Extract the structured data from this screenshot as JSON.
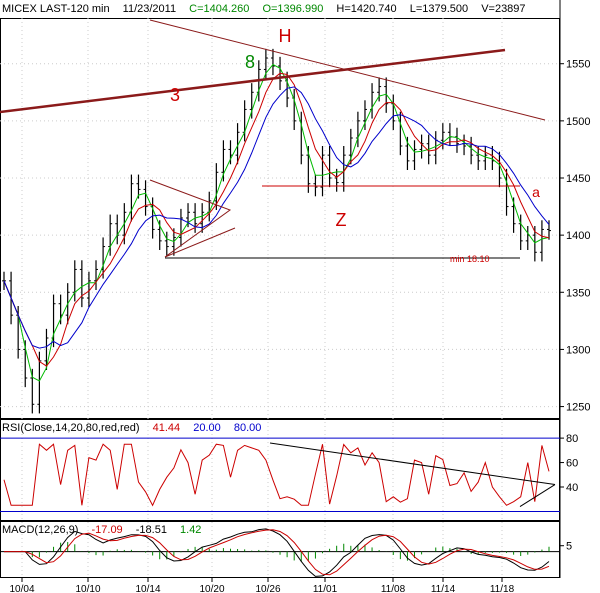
{
  "header": {
    "symbol": "MICEX LAST-120 min",
    "date": "11/23/2011",
    "close": "C=1404.260",
    "open": "O=1396.990",
    "high": "H=1420.740",
    "low": "L=1379.500",
    "volume": "V=23897"
  },
  "rsi_header": {
    "label": "RSI(Close,14,20,80,red,red)",
    "value": "41.44",
    "low": "20.00",
    "high": "80.00"
  },
  "macd_header": {
    "label": "MACD(12,26,9)",
    "v1": "-17.09",
    "v2": "-18.51",
    "v3": "1.42"
  },
  "annotations": {
    "h": "H",
    "eight": "8",
    "three": "3",
    "z": "Z",
    "a": "a",
    "min_label": "min 18.10"
  },
  "colors": {
    "price": "#000000",
    "sma_fast": "#00bb00",
    "sma_mid": "#cc0000",
    "sma_slow": "#0000cc",
    "rsi": "#cc0000",
    "macd": "#000000",
    "signal": "#cc0000",
    "trendline": "#8b1a1a",
    "green_text": "#008800",
    "blue_text": "#0000cc"
  },
  "chart_data": [
    {
      "type": "line",
      "title": "MICEX LAST-120 min",
      "x_ticks": [
        "10/04",
        "10/10",
        "10/14",
        "10/20",
        "10/26",
        "11/01",
        "11/08",
        "11/14",
        "11/18"
      ],
      "y_ticks": [
        1250,
        1300,
        1350,
        1400,
        1450,
        1500,
        1550
      ],
      "ylim": [
        1240,
        1590
      ],
      "series": [
        {
          "values": [
            1360,
            1330,
            1300,
            1275,
            1252,
            1290,
            1310,
            1340,
            1330,
            1350,
            1370,
            1345,
            1360,
            1370,
            1390,
            1410,
            1400,
            1420,
            1445,
            1440,
            1425,
            1405,
            1395,
            1390,
            1398,
            1415,
            1420,
            1410,
            1420,
            1430,
            1455,
            1475,
            1470,
            1490,
            1510,
            1525,
            1545,
            1555,
            1548,
            1535,
            1520,
            1500,
            1470,
            1445,
            1442,
            1470,
            1450,
            1446,
            1470,
            1485,
            1500,
            1510,
            1525,
            1530,
            1515,
            1500,
            1478,
            1465,
            1475,
            1480,
            1470,
            1483,
            1490,
            1486,
            1480,
            1478,
            1470,
            1465,
            1470,
            1465,
            1450,
            1425,
            1410,
            1395,
            1400,
            1385,
            1405,
            1404
          ]
        }
      ],
      "levels": [
        1443,
        1380
      ]
    },
    {
      "type": "line",
      "title": "RSI",
      "y_ticks": [
        40,
        60,
        80
      ],
      "ylim": [
        13,
        85
      ],
      "levels": [
        80,
        20
      ]
    },
    {
      "type": "line",
      "title": "MACD",
      "y_ticks": [
        5
      ],
      "ylim": [
        -20,
        15
      ],
      "levels": [
        0
      ]
    }
  ]
}
